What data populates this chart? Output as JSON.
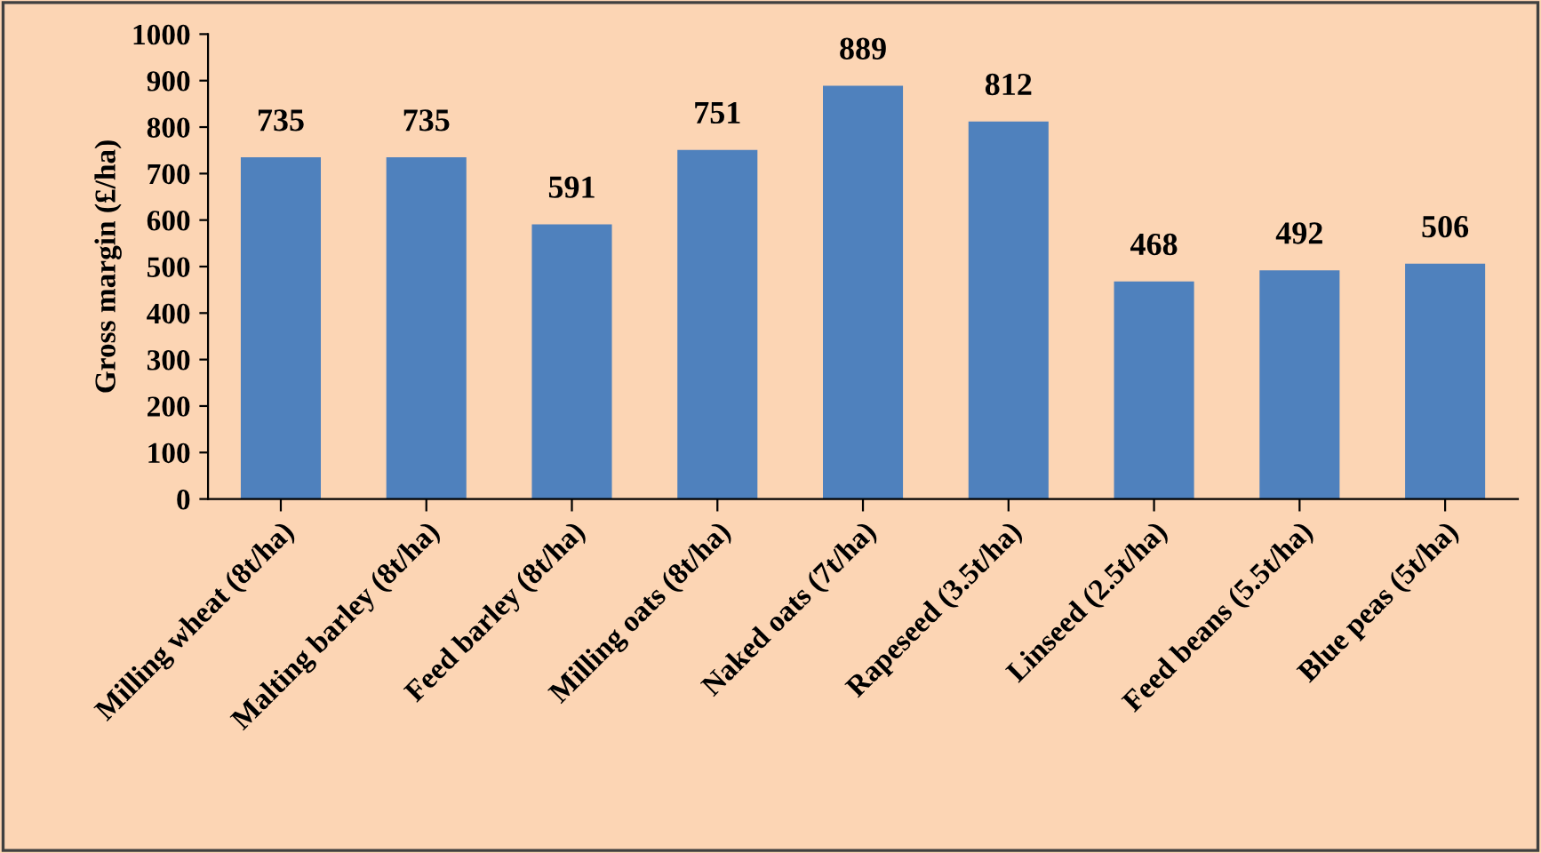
{
  "chart_data": {
    "type": "bar",
    "ylabel": "Gross margin (£/ha)",
    "categories": [
      "Milling wheat (8t/ha)",
      "Malting barley (8t/ha)",
      "Feed barley (8t/ha)",
      "Milling oats (8t/ha)",
      "Naked oats (7t/ha)",
      "Rapeseed (3.5t/ha)",
      "Linseed (2.5t/ha)",
      "Feed beans (5.5t/ha)",
      "Blue peas (5t/ha)"
    ],
    "values": [
      735,
      735,
      591,
      751,
      889,
      812,
      468,
      492,
      506
    ],
    "color": "#4f81bd",
    "ylim": [
      0,
      1000
    ],
    "yticks": [
      0,
      100,
      200,
      300,
      400,
      500,
      600,
      700,
      800,
      900,
      1000
    ],
    "data_labels": true,
    "grid": false,
    "legend": false
  }
}
